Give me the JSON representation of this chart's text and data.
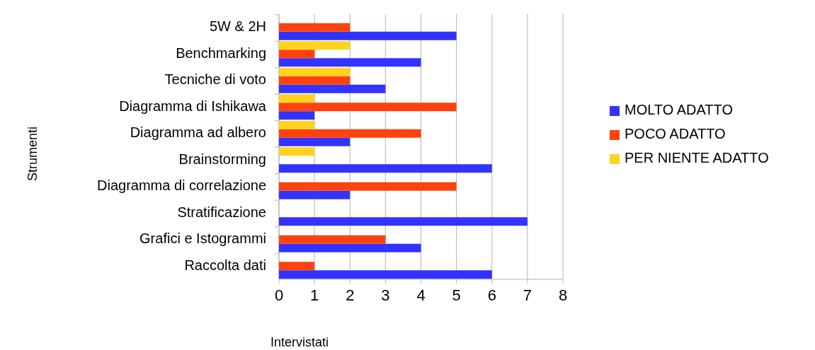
{
  "chart_data": {
    "type": "bar",
    "orientation": "horizontal",
    "xlabel": "Intervistati",
    "ylabel": "Strumenti",
    "categories": [
      "5W & 2H",
      "Benchmarking",
      "Tecniche di voto",
      "Diagramma di Ishikawa",
      "Diagramma ad albero",
      "Brainstorming",
      "Diagramma di correlazione",
      "Stratificazione",
      "Grafici e Istogrammi",
      "Raccolta dati"
    ],
    "series": [
      {
        "name": "MOLTO ADATTO",
        "color": "#3333ff",
        "values": [
          5,
          4,
          3,
          1,
          2,
          6,
          2,
          7,
          4,
          6
        ]
      },
      {
        "name": "POCO ADATTO",
        "color": "#ff420e",
        "values": [
          2,
          1,
          2,
          5,
          4,
          0,
          5,
          0,
          3,
          1
        ]
      },
      {
        "name": "PER NIENTE ADATTO",
        "color": "#ffd320",
        "values": [
          0,
          2,
          2,
          1,
          1,
          1,
          0,
          0,
          0,
          0
        ]
      }
    ],
    "xlim": [
      0,
      8
    ],
    "xticks": [
      0,
      1,
      2,
      3,
      4,
      5,
      6,
      7,
      8
    ],
    "grid": "x",
    "legend": "right"
  }
}
